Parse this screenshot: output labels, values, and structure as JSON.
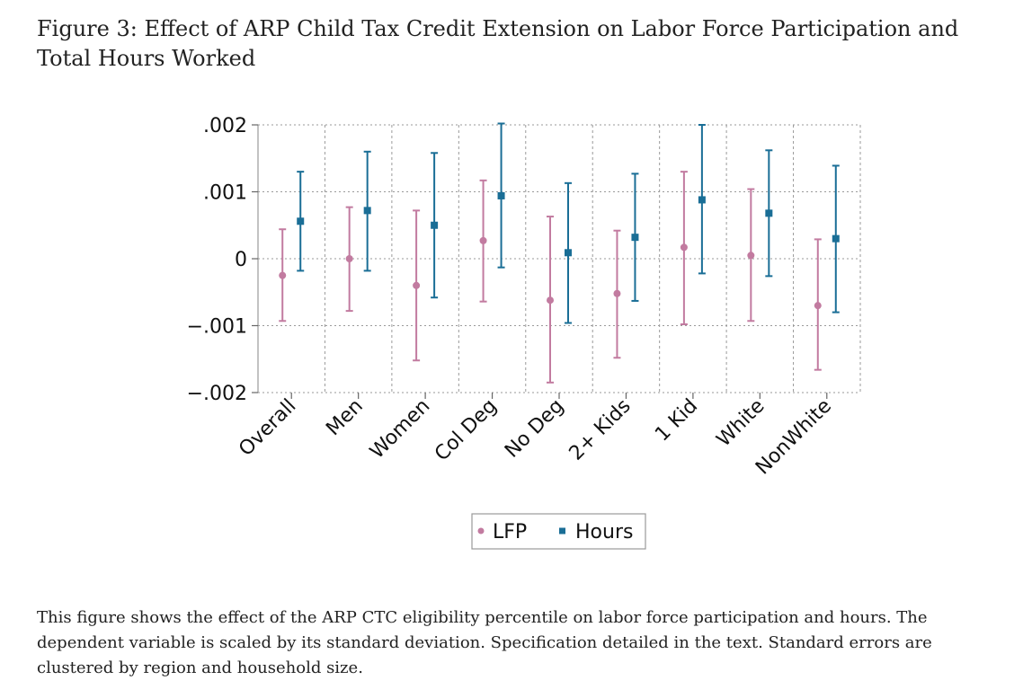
{
  "figure": {
    "title": "Figure 3: Effect of ARP Child Tax Credit Extension on Labor Force Participation and Total Hours Worked",
    "note": "This figure shows the effect of the ARP CTC eligibility percentile on labor force participation and hours. The dependent variable is scaled by its standard deviation. Specification detailed in the text. Standard errors are clustered by region and household size."
  },
  "chart_data": {
    "type": "scatter",
    "subtype": "coefficient plot with confidence intervals",
    "title": "",
    "xlabel": "",
    "ylabel": "",
    "ylim": [
      -0.002,
      0.002
    ],
    "yticks": [
      0.002,
      0.001,
      0,
      -0.001,
      -0.002
    ],
    "ytick_labels": [
      ".002",
      ".001",
      "0",
      "−.001",
      "−.002"
    ],
    "grid": true,
    "legend_position": "bottom-center",
    "categories": [
      "Overall",
      "Men",
      "Women",
      "Col Deg",
      "No Deg",
      "2+ Kids",
      "1 Kid",
      "White",
      "NonWhite"
    ],
    "series": [
      {
        "name": "LFP",
        "color": "#c27ba0",
        "marker": "circle",
        "estimates": [
          -0.00025,
          0.0,
          -0.0004,
          0.00027,
          -0.00062,
          -0.00052,
          0.00017,
          5e-05,
          -0.0007
        ],
        "ci_low": [
          -0.00093,
          -0.00078,
          -0.00152,
          -0.00064,
          -0.00185,
          -0.00148,
          -0.00098,
          -0.00093,
          -0.00166
        ],
        "ci_high": [
          0.00044,
          0.00077,
          0.00072,
          0.00117,
          0.00063,
          0.00042,
          0.0013,
          0.00104,
          0.00029
        ]
      },
      {
        "name": "Hours",
        "color": "#1a6e96",
        "marker": "square",
        "estimates": [
          0.00056,
          0.00072,
          0.0005,
          0.00094,
          9e-05,
          0.00032,
          0.00088,
          0.00068,
          0.0003
        ],
        "ci_low": [
          -0.00018,
          -0.00018,
          -0.00058,
          -0.00013,
          -0.00096,
          -0.00063,
          -0.00022,
          -0.00026,
          -0.0008
        ],
        "ci_high": [
          0.0013,
          0.0016,
          0.00158,
          0.00202,
          0.00113,
          0.00127,
          0.002,
          0.00162,
          0.00139
        ]
      }
    ]
  }
}
